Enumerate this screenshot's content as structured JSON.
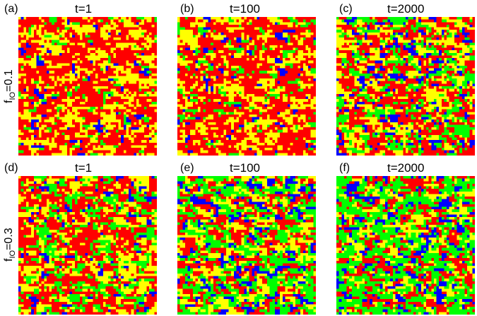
{
  "palette": {
    "red": "#ff0000",
    "yellow": "#ffff00",
    "green": "#00ff00",
    "blue": "#0000ff"
  },
  "rows": [
    {
      "label_main": "f",
      "label_sub": "IO",
      "label_rest": "=0.1",
      "panels": [
        {
          "tag": "(a)",
          "title": "t=1",
          "mix": {
            "red": 0.58,
            "yellow": 0.33,
            "green": 0.05,
            "blue": 0.04
          }
        },
        {
          "tag": "(b)",
          "title": "t=100",
          "mix": {
            "red": 0.55,
            "yellow": 0.3,
            "green": 0.1,
            "blue": 0.05
          }
        },
        {
          "tag": "(c)",
          "title": "t=2000",
          "mix": {
            "red": 0.38,
            "yellow": 0.26,
            "green": 0.24,
            "blue": 0.12
          }
        }
      ]
    },
    {
      "label_main": "f",
      "label_sub": "IO",
      "label_rest": "=0.3",
      "panels": [
        {
          "tag": "(d)",
          "title": "t=1",
          "mix": {
            "red": 0.45,
            "yellow": 0.27,
            "green": 0.22,
            "blue": 0.06
          }
        },
        {
          "tag": "(e)",
          "title": "t=100",
          "mix": {
            "red": 0.28,
            "yellow": 0.24,
            "green": 0.36,
            "blue": 0.12
          }
        },
        {
          "tag": "(f)",
          "title": "t=2000",
          "mix": {
            "red": 0.24,
            "yellow": 0.22,
            "green": 0.4,
            "blue": 0.14
          }
        }
      ]
    }
  ]
}
